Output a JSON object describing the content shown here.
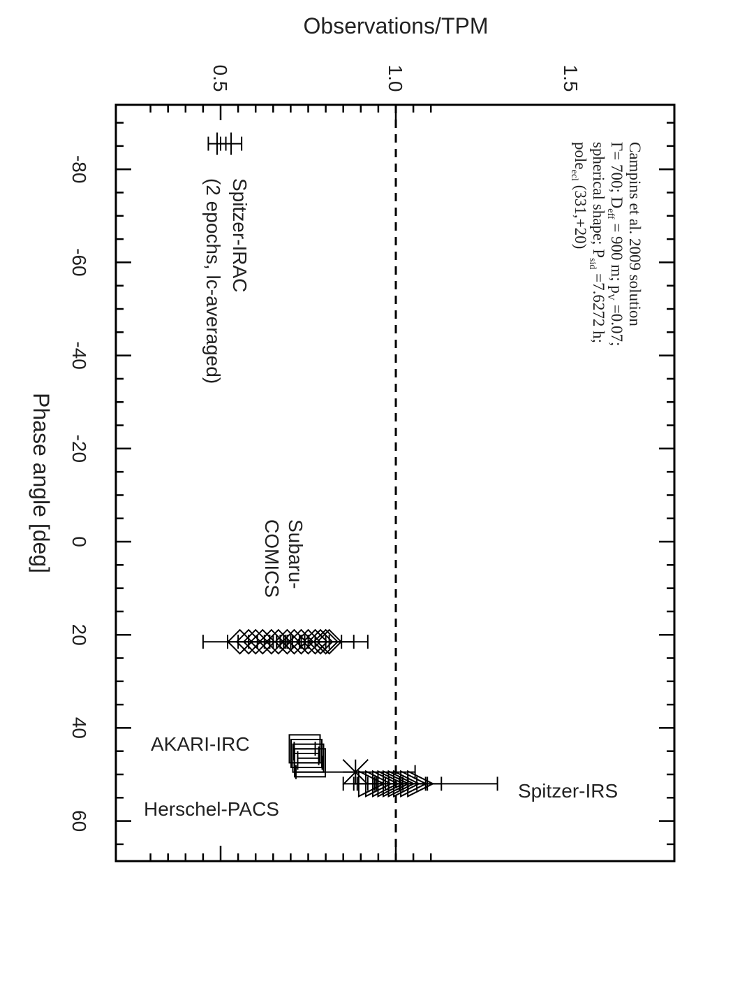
{
  "chart_data": {
    "type": "scatter",
    "title": "",
    "xlabel": "Phase angle [deg]",
    "ylabel": "Observations/TPM",
    "xlim": [
      -97,
      68
    ],
    "ylim": [
      0.3,
      1.1
    ],
    "x_tick_labels": [
      "-80",
      "-60",
      "-40",
      "-20",
      "0",
      "20",
      "40",
      "60"
    ],
    "y_tick_labels": [
      "0.5",
      "1.0",
      "1.5"
    ],
    "reference_line": {
      "y": 1.0,
      "style": "dashed"
    },
    "orientation": "rotated-90-clockwise",
    "annotations": {
      "spitzer_irac": [
        "Spitzer-IRAC",
        "(2 epochs, lc-averaged)"
      ],
      "subaru_comics": [
        "Subaru-",
        "COMICS"
      ],
      "akari_irc": "AKARI-IRC",
      "herschel_pacs": "Herschel-PACS",
      "spitzer_irs": "Spitzer-IRS"
    },
    "note": {
      "line1": "Campins et al. 2009 solution",
      "line2": "Γ= 700; D",
      "line2_sub": "eff",
      "line2_b": " = 900 m; p",
      "line2_sub2": "V",
      "line2_c": " =0.07;",
      "line3": "spherical shape; P",
      "line3_sub": "sid",
      "line3_b": " =7.6272 h;",
      "line4": "pole",
      "line4_sub": "ecl",
      "line4_b": " (331,+20)"
    },
    "series": [
      {
        "name": "Spitzer-IRAC",
        "marker": "plus",
        "points": [
          {
            "x": -85.5,
            "y": 0.49,
            "err": 0.025
          },
          {
            "x": -85.5,
            "y": 0.53,
            "err": 0.03
          }
        ]
      },
      {
        "name": "Subaru-COMICS",
        "marker": "diamond",
        "points": [
          {
            "x": 21.5,
            "y": 0.555,
            "err": 0.105
          },
          {
            "x": 21.5,
            "y": 0.58,
            "err": 0.06
          },
          {
            "x": 21.5,
            "y": 0.6,
            "err": 0.05
          },
          {
            "x": 21.5,
            "y": 0.62,
            "err": 0.04
          },
          {
            "x": 21.5,
            "y": 0.645,
            "err": 0.04
          },
          {
            "x": 21.5,
            "y": 0.665,
            "err": 0.04
          },
          {
            "x": 21.5,
            "y": 0.69,
            "err": 0.05
          },
          {
            "x": 21.5,
            "y": 0.71,
            "err": 0.04
          },
          {
            "x": 21.5,
            "y": 0.73,
            "err": 0.04
          },
          {
            "x": 21.5,
            "y": 0.75,
            "err": 0.05
          },
          {
            "x": 21.5,
            "y": 0.77,
            "err": 0.04
          },
          {
            "x": 21.5,
            "y": 0.785,
            "err": 0.06
          },
          {
            "x": 21.5,
            "y": 0.8,
            "err": 0.12
          },
          {
            "x": 21.5,
            "y": 0.81,
            "err": 0.07
          }
        ]
      },
      {
        "name": "AKARI-IRC",
        "marker": "square",
        "points": [
          {
            "x": 44.5,
            "y": 0.74,
            "err": 0.03
          },
          {
            "x": 45.5,
            "y": 0.745,
            "err": 0.035
          },
          {
            "x": 46.5,
            "y": 0.75,
            "err": 0.03
          },
          {
            "x": 47.5,
            "y": 0.755,
            "err": 0.035
          }
        ]
      },
      {
        "name": "Herschel-PACS",
        "marker": "asterisk",
        "points": [
          {
            "x": 49.5,
            "y": 0.885,
            "err": 0.17
          }
        ]
      },
      {
        "name": "Spitzer-IRS",
        "marker": "triangle",
        "points": [
          {
            "x": 52.0,
            "y": 0.93,
            "err": 0.05
          },
          {
            "x": 52.0,
            "y": 0.95,
            "err": 0.06
          },
          {
            "x": 52.0,
            "y": 0.97,
            "err": 0.05
          },
          {
            "x": 52.0,
            "y": 0.985,
            "err": 0.05
          },
          {
            "x": 52.0,
            "y": 1.0,
            "err": 0.06
          },
          {
            "x": 52.0,
            "y": 1.015,
            "err": 0.07
          },
          {
            "x": 52.0,
            "y": 1.03,
            "err": 0.06
          },
          {
            "x": 52.0,
            "y": 1.05,
            "err": 0.08
          },
          {
            "x": 52.0,
            "y": 1.07,
            "err": 0.22
          }
        ]
      }
    ]
  }
}
